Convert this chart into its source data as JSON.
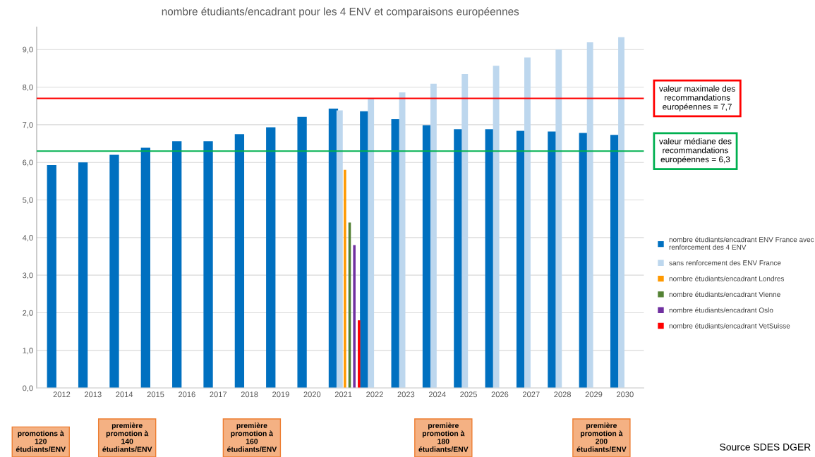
{
  "chart_data": {
    "type": "bar",
    "title": "nombre étudiants/encadrant pour les 4 ENV et comparaisons européennes",
    "categories": [
      "2012",
      "2013",
      "2014",
      "2015",
      "2016",
      "2017",
      "2018",
      "2019",
      "2020",
      "2021",
      "2022",
      "2023",
      "2024",
      "2025",
      "2026",
      "2027",
      "2028",
      "2029",
      "2030"
    ],
    "series": [
      {
        "name": "nombre étudiants/encadrant ENV France avec\nrenforcement des 4 ENV",
        "color": "#0070c0",
        "values": [
          5.93,
          6.0,
          6.2,
          6.39,
          6.56,
          6.56,
          6.75,
          6.93,
          7.21,
          7.43,
          7.36,
          7.15,
          6.99,
          6.88,
          6.88,
          6.84,
          6.82,
          6.78,
          6.73
        ]
      },
      {
        "name": "sans renforcement des ENV France",
        "color": "#bdd7ee",
        "values": [
          null,
          null,
          null,
          null,
          null,
          null,
          null,
          null,
          null,
          7.38,
          7.7,
          7.86,
          8.09,
          8.35,
          8.57,
          8.79,
          9.0,
          9.19,
          9.33
        ]
      },
      {
        "name": "nombre étudiants/encadrant Londres",
        "color": "#ff9900",
        "values": [
          null,
          null,
          null,
          null,
          null,
          null,
          null,
          null,
          null,
          5.8,
          null,
          null,
          null,
          null,
          null,
          null,
          null,
          null,
          null
        ]
      },
      {
        "name": "nombre étudiants/encadrant Vienne",
        "color": "#548235",
        "values": [
          null,
          null,
          null,
          null,
          null,
          null,
          null,
          null,
          null,
          4.4,
          null,
          null,
          null,
          null,
          null,
          null,
          null,
          null,
          null
        ]
      },
      {
        "name": "nombre étudiants/encadrant Oslo",
        "color": "#7030a0",
        "values": [
          null,
          null,
          null,
          null,
          null,
          null,
          null,
          null,
          null,
          3.8,
          null,
          null,
          null,
          null,
          null,
          null,
          null,
          null,
          null
        ]
      },
      {
        "name": "nombre étudiants/encadrant VetSuisse",
        "color": "#ff0000",
        "values": [
          null,
          null,
          null,
          null,
          null,
          null,
          null,
          null,
          null,
          1.8,
          null,
          null,
          null,
          null,
          null,
          null,
          null,
          null,
          null
        ]
      }
    ],
    "ylim": [
      0,
      9.6
    ],
    "yticks": [
      {
        "value": 0,
        "label": "0,0"
      },
      {
        "value": 1,
        "label": "1,0"
      },
      {
        "value": 2,
        "label": "2,0"
      },
      {
        "value": 3,
        "label": "3,0"
      },
      {
        "value": 4,
        "label": "4,0"
      },
      {
        "value": 5,
        "label": "5,0"
      },
      {
        "value": 6,
        "label": "6,0"
      },
      {
        "value": 7,
        "label": "7,0"
      },
      {
        "value": 8,
        "label": "8,0"
      },
      {
        "value": 9,
        "label": "9,0"
      }
    ],
    "grid": "y",
    "legend": "right",
    "ref_lines": [
      {
        "axis": "y",
        "value": 7.7,
        "label": "valeur maximale des\nrecommandations\neuropéennes = 7,7",
        "color": "#ff0000"
      },
      {
        "axis": "y",
        "value": 6.3,
        "label": "valeur médiane des\nrecommandations\neuropéennes = 6,3",
        "color": "#00b050"
      }
    ],
    "annotations": [
      "promotions à\n120\nétudiants/ENV",
      "première\npromotion à\n140\nétudiants/ENV",
      "première\npromotion à\n160\nétudiants/ENV",
      "première\npromotion à\n180\nétudiants/ENV",
      "première\npromotion à\n200\nétudiants/ENV",
      "Source SDES DGER"
    ]
  }
}
